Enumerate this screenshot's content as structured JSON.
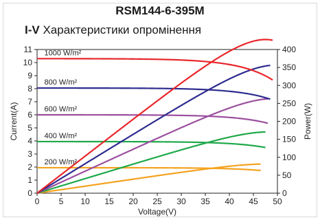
{
  "chart_data": {
    "type": "line",
    "title": "RSM144-6-395M",
    "subtitle_bold": "I-V",
    "subtitle_rest": "Характеристики опромінення",
    "xlabel": "Voltage(V)",
    "ylabel_left": "Current(A)",
    "ylabel_right": "Power(W)",
    "xlim": [
      0,
      50
    ],
    "ylim_left": [
      0,
      11
    ],
    "ylim_right": [
      0,
      400
    ],
    "x_ticks": [
      0,
      5,
      10,
      15,
      20,
      25,
      30,
      35,
      40,
      45,
      50
    ],
    "y_left_ticks": [
      0,
      1,
      2,
      3,
      4,
      5,
      6,
      7,
      8,
      9,
      10,
      11
    ],
    "y_right_ticks": [
      0,
      50,
      100,
      150,
      200,
      250,
      300,
      350,
      400
    ],
    "grid": false,
    "series": [
      {
        "name": "1000 W/m²",
        "color": "#e8262b",
        "isc": 10.3,
        "voc": 49.0,
        "vmp": 40.0,
        "imp": 9.85,
        "pmax": 395
      },
      {
        "name": "800 W/m²",
        "color": "#2d2b8f",
        "isc": 8.05,
        "voc": 48.5,
        "vmp": 40.0,
        "imp": 7.8,
        "pmax": 318
      },
      {
        "name": "600 W/m²",
        "color": "#9b4f9e",
        "isc": 6.0,
        "voc": 48.0,
        "vmp": 40.0,
        "imp": 5.8,
        "pmax": 237
      },
      {
        "name": "400 W/m²",
        "color": "#1fa84a",
        "isc": 3.95,
        "voc": 47.5,
        "vmp": 40.0,
        "imp": 3.8,
        "pmax": 156
      },
      {
        "name": "200 W/m²",
        "color": "#f4a21f",
        "isc": 1.95,
        "voc": 46.5,
        "vmp": 40.0,
        "imp": 1.87,
        "pmax": 75
      }
    ]
  }
}
